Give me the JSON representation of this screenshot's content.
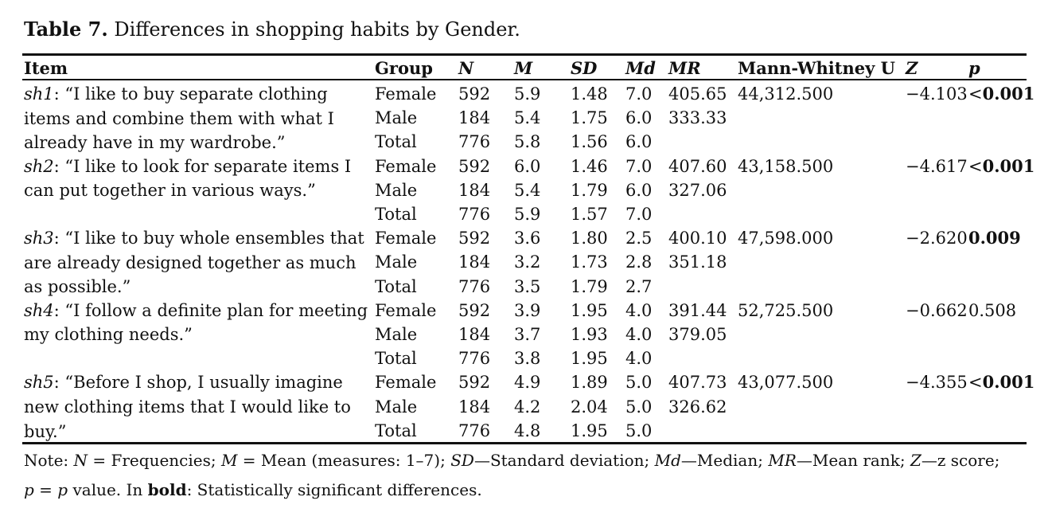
{
  "caption": {
    "label": "Table 7.",
    "text": "Differences in shopping habits by Gender."
  },
  "headers": {
    "item": "Item",
    "group": "Group",
    "n": "N",
    "m": "M",
    "sd": "SD",
    "md": "Md",
    "mr": "MR",
    "u": "Mann-Whitney U",
    "z": "Z",
    "p": "p"
  },
  "items": [
    {
      "code": "sh1",
      "text": ": “I like to buy separate clothing items and combine them with what I already have in my wardrobe.”",
      "u": "44,312.500",
      "z": "−4.103",
      "p_prefix": "<",
      "p": "0.001",
      "p_bold": true,
      "rows": [
        {
          "group": "Female",
          "n": "592",
          "m": "5.9",
          "sd": "1.48",
          "md": "7.0",
          "mr": "405.65"
        },
        {
          "group": "Male",
          "n": "184",
          "m": "5.4",
          "sd": "1.75",
          "md": "6.0",
          "mr": "333.33"
        },
        {
          "group": "Total",
          "n": "776",
          "m": "5.8",
          "sd": "1.56",
          "md": "6.0",
          "mr": ""
        }
      ]
    },
    {
      "code": "sh2",
      "text": ": “I like to look for separate items I can put together in various ways.”",
      "u": "43,158.500",
      "z": "−4.617",
      "p_prefix": "<",
      "p": "0.001",
      "p_bold": true,
      "rows": [
        {
          "group": "Female",
          "n": "592",
          "m": "6.0",
          "sd": "1.46",
          "md": "7.0",
          "mr": "407.60"
        },
        {
          "group": "Male",
          "n": "184",
          "m": "5.4",
          "sd": "1.79",
          "md": "6.0",
          "mr": "327.06"
        },
        {
          "group": "Total",
          "n": "776",
          "m": "5.9",
          "sd": "1.57",
          "md": "7.0",
          "mr": ""
        }
      ]
    },
    {
      "code": "sh3",
      "text": ": “I like to buy whole ensembles that are already designed together as much as possible.”",
      "u": "47,598.000",
      "z": "−2.620",
      "p_prefix": "",
      "p": "0.009",
      "p_bold": true,
      "rows": [
        {
          "group": "Female",
          "n": "592",
          "m": "3.6",
          "sd": "1.80",
          "md": "2.5",
          "mr": "400.10"
        },
        {
          "group": "Male",
          "n": "184",
          "m": "3.2",
          "sd": "1.73",
          "md": "2.8",
          "mr": "351.18"
        },
        {
          "group": "Total",
          "n": "776",
          "m": "3.5",
          "sd": "1.79",
          "md": "2.7",
          "mr": ""
        }
      ]
    },
    {
      "code": "sh4",
      "text": ": “I follow a definite plan for meeting my clothing needs.”",
      "u": "52,725.500",
      "z": "−0.662",
      "p_prefix": "",
      "p": "0.508",
      "p_bold": false,
      "rows": [
        {
          "group": "Female",
          "n": "592",
          "m": "3.9",
          "sd": "1.95",
          "md": "4.0",
          "mr": "391.44"
        },
        {
          "group": "Male",
          "n": "184",
          "m": "3.7",
          "sd": "1.93",
          "md": "4.0",
          "mr": "379.05"
        },
        {
          "group": "Total",
          "n": "776",
          "m": "3.8",
          "sd": "1.95",
          "md": "4.0",
          "mr": ""
        }
      ]
    },
    {
      "code": "sh5",
      "text": ": “Before I shop, I usually imagine new clothing items that I would like to buy.”",
      "u": "43,077.500",
      "z": "−4.355",
      "p_prefix": "<",
      "p": "0.001",
      "p_bold": true,
      "rows": [
        {
          "group": "Female",
          "n": "592",
          "m": "4.9",
          "sd": "1.89",
          "md": "5.0",
          "mr": "407.73"
        },
        {
          "group": "Male",
          "n": "184",
          "m": "4.2",
          "sd": "2.04",
          "md": "5.0",
          "mr": "326.62"
        },
        {
          "group": "Total",
          "n": "776",
          "m": "4.8",
          "sd": "1.95",
          "md": "5.0",
          "mr": ""
        }
      ]
    }
  ],
  "note": {
    "l1_a": "Note: ",
    "l1_n": "N",
    "l1_b": " = Frequencies; ",
    "l1_m": "M",
    "l1_c": " = Mean (measures: 1–7); ",
    "l1_sd": "SD",
    "l1_d": "—Standard deviation; ",
    "l1_md": "Md",
    "l1_e": "—Median; ",
    "l1_mr": "MR",
    "l1_f": "—Mean rank; ",
    "l1_z": "Z",
    "l1_g": "—z score;",
    "l2_p1": "p",
    "l2_a": " = ",
    "l2_p2": "p",
    "l2_b": " value. In ",
    "l2_bold": "bold",
    "l2_c": ": Statistically significant differences."
  }
}
